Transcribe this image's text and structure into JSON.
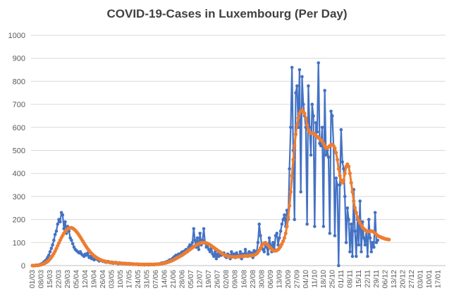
{
  "chart_data": {
    "type": "line",
    "title": "COVID-19-Cases in Luxembourg (Per Day)",
    "xlabel": "",
    "ylabel": "",
    "ylim": [
      0,
      1000
    ],
    "yticks": [
      0,
      100,
      200,
      300,
      400,
      500,
      600,
      700,
      800,
      900,
      1000
    ],
    "x_tick_labels": [
      "01/03",
      "08/03",
      "15/03",
      "22/03",
      "29/03",
      "05/04",
      "12/04",
      "19/04",
      "26/04",
      "03/05",
      "10/05",
      "17/05",
      "24/05",
      "31/05",
      "07/06",
      "14/06",
      "21/06",
      "28/06",
      "05/07",
      "12/07",
      "19/07",
      "26/07",
      "02/08",
      "09/08",
      "16/08",
      "23/08",
      "30/08",
      "06/09",
      "13/09",
      "20/09",
      "27/09",
      "04/10",
      "11/10",
      "18/10",
      "25/10",
      "01/11",
      "08/11",
      "15/11",
      "22/11",
      "29/11",
      "06/12",
      "13/12",
      "20/12",
      "27/12",
      "03/01",
      "10/01",
      "17/01"
    ],
    "grid": true,
    "legend": "none",
    "colors": {
      "daily": "#4472C4",
      "average": "#ED7D31",
      "grid": "#d9d9d9",
      "axis": "#bfbfbf"
    },
    "series": [
      {
        "key": "daily",
        "x_start": "01/03",
        "step_days": 1,
        "values": [
          0,
          0,
          0,
          2,
          2,
          3,
          5,
          7,
          10,
          15,
          20,
          25,
          35,
          45,
          60,
          75,
          90,
          110,
          135,
          150,
          180,
          200,
          190,
          230,
          220,
          160,
          190,
          140,
          170,
          150,
          120,
          110,
          95,
          80,
          70,
          65,
          60,
          55,
          60,
          50,
          45,
          40,
          50,
          45,
          55,
          35,
          40,
          30,
          35,
          25,
          30,
          28,
          25,
          20,
          25,
          22,
          18,
          20,
          15,
          15,
          18,
          14,
          12,
          15,
          10,
          12,
          14,
          10,
          8,
          12,
          10,
          9,
          8,
          10,
          8,
          7,
          9,
          6,
          8,
          7,
          5,
          6,
          5,
          7,
          4,
          5,
          6,
          4,
          5,
          3,
          4,
          5,
          3,
          4,
          6,
          5,
          4,
          6,
          5,
          7,
          6,
          8,
          10,
          12,
          10,
          14,
          15,
          18,
          20,
          25,
          22,
          30,
          35,
          40,
          45,
          42,
          50,
          48,
          55,
          60,
          55,
          65,
          70,
          60,
          80,
          90,
          75,
          100,
          160,
          110,
          80,
          120,
          70,
          140,
          90,
          110,
          160,
          100,
          80,
          90,
          70,
          60,
          80,
          50,
          40,
          60,
          30,
          50,
          40,
          60,
          45,
          50,
          55,
          40,
          35,
          50,
          45,
          30,
          60,
          40,
          50,
          35,
          55,
          45,
          40,
          60,
          30,
          50,
          40,
          70,
          50,
          40,
          60,
          45,
          55,
          35,
          65,
          50,
          60,
          100,
          180,
          130,
          90,
          70,
          60,
          100,
          80,
          50,
          120,
          90,
          60,
          100,
          70,
          130,
          140,
          90,
          120,
          150,
          180,
          200,
          220,
          170,
          240,
          200,
          420,
          600,
          860,
          500,
          200,
          750,
          780,
          600,
          850,
          320,
          820,
          700,
          650,
          600,
          180,
          780,
          600,
          480,
          700,
          650,
          170,
          620,
          580,
          880,
          530,
          520,
          600,
          170,
          760,
          480,
          500,
          470,
          140,
          670,
          650,
          520,
          130,
          380,
          350,
          0,
          350,
          590,
          450,
          420,
          300,
          100,
          250,
          200,
          60,
          180,
          40,
          330,
          150,
          40,
          200,
          90,
          280,
          60,
          190,
          120,
          90,
          150,
          40,
          200,
          120,
          60,
          100,
          80,
          230,
          100,
          110
        ]
      },
      {
        "key": "average",
        "x_start": "01/03",
        "step_days": 1,
        "values": [
          0,
          0,
          0,
          1,
          1,
          2,
          3,
          4,
          6,
          8,
          11,
          14,
          18,
          23,
          29,
          36,
          44,
          53,
          63,
          74,
          86,
          98,
          110,
          121,
          131,
          140,
          148,
          155,
          160,
          163,
          164,
          164,
          162,
          158,
          153,
          147,
          140,
          132,
          124,
          115,
          106,
          97,
          88,
          80,
          72,
          65,
          58,
          52,
          47,
          42,
          38,
          34,
          31,
          28,
          25,
          23,
          21,
          19,
          18,
          17,
          16,
          15,
          14,
          13,
          13,
          12,
          12,
          11,
          11,
          10,
          10,
          10,
          9,
          9,
          9,
          8,
          8,
          8,
          7,
          7,
          7,
          6,
          6,
          6,
          6,
          5,
          5,
          5,
          5,
          5,
          5,
          5,
          5,
          5,
          5,
          5,
          5,
          5,
          6,
          6,
          6,
          7,
          8,
          9,
          10,
          11,
          12,
          14,
          16,
          18,
          20,
          22,
          25,
          28,
          31,
          34,
          37,
          40,
          43,
          46,
          50,
          54,
          58,
          62,
          66,
          70,
          74,
          78,
          82,
          86,
          89,
          92,
          95,
          97,
          99,
          100,
          100,
          99,
          98,
          96,
          93,
          90,
          86,
          82,
          78,
          74,
          70,
          66,
          62,
          58,
          54,
          51,
          48,
          45,
          43,
          41,
          40,
          39,
          38,
          38,
          38,
          38,
          38,
          39,
          39,
          40,
          40,
          41,
          41,
          42,
          42,
          43,
          43,
          44,
          44,
          45,
          46,
          48,
          52,
          58,
          66,
          76,
          86,
          94,
          98,
          98,
          94,
          88,
          82,
          76,
          70,
          66,
          64,
          64,
          66,
          70,
          76,
          84,
          94,
          106,
          120,
          140,
          170,
          210,
          260,
          320,
          390,
          460,
          520,
          570,
          610,
          640,
          660,
          670,
          675,
          670,
          660,
          640,
          610,
          590,
          580,
          575,
          575,
          575,
          570,
          565,
          560,
          555,
          550,
          545,
          540,
          530,
          520,
          510,
          510,
          515,
          520,
          525,
          525,
          520,
          510,
          490,
          460,
          420,
          390,
          370,
          360,
          370,
          400,
          430,
          440,
          430,
          400,
          360,
          320,
          280,
          250,
          230,
          210,
          195,
          185,
          175,
          165,
          160,
          155,
          150,
          148,
          148,
          150,
          150,
          148,
          145,
          140,
          135,
          130,
          127,
          125,
          122,
          120,
          118,
          116,
          115,
          114,
          113
        ]
      }
    ]
  }
}
